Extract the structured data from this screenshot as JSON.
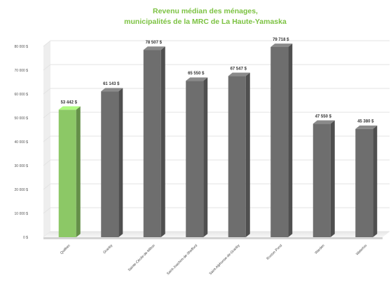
{
  "chart_data": {
    "type": "bar",
    "title_lines": [
      "Revenu médian des ménages,",
      "municipalités de la MRC de La Haute-Yamaska"
    ],
    "xlabel": "",
    "ylabel": "",
    "ylim": [
      0,
      80000
    ],
    "yticks": [
      0,
      10000,
      20000,
      30000,
      40000,
      50000,
      60000,
      70000,
      80000
    ],
    "ytick_labels": [
      "0 $",
      "10 000 $",
      "20 000 $",
      "30 000 $",
      "40 000 $",
      "50 000 $",
      "60 000 $",
      "70 000 $",
      "80 000 $"
    ],
    "categories": [
      "Québec",
      "Granby",
      "Sainte-Cécile-de-Milton",
      "Saint-Joachim-de-Shefford",
      "Saint-Alphonse-de-Granby",
      "Roxton Pond",
      "Warden",
      "Waterloo"
    ],
    "values": [
      53442,
      61143,
      78507,
      65550,
      67547,
      79718,
      47550,
      45380
    ],
    "data_labels": [
      "53 442 $",
      "61 143 $",
      "78 507 $",
      "65 550 $",
      "67 547 $",
      "79 718 $",
      "47 550 $",
      "45 380 $"
    ],
    "highlight_index": 0,
    "grid": true,
    "legend": "none",
    "colors": {
      "highlight": "#8cc866",
      "bar": "#6e6e6e",
      "title": "#7cc242",
      "grid": "#e3e3e3"
    }
  }
}
